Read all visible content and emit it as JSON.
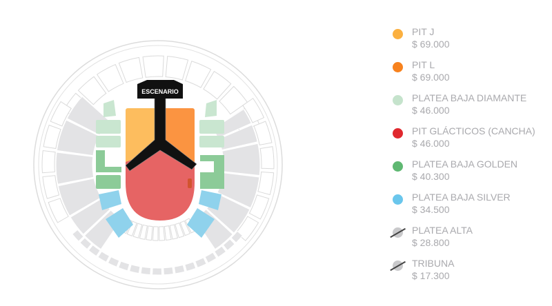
{
  "map": {
    "stage_label": "ESCENARIO"
  },
  "legend": [
    {
      "name": "PIT J",
      "price": "$ 69.000",
      "color": "#fbb040",
      "available": true
    },
    {
      "name": "PIT L",
      "price": "$ 69.000",
      "color": "#f7821e",
      "available": true
    },
    {
      "name": "PLATEA BAJA DIAMANTE",
      "price": "$ 46.000",
      "color": "#c5e3cc",
      "available": true
    },
    {
      "name": "PIT GLÁCTICOS (CANCHA)",
      "price": "$ 46.000",
      "color": "#e0282e",
      "available": true
    },
    {
      "name": "PLATEA BAJA GOLDEN",
      "price": "$ 40.300",
      "color": "#5fb872",
      "available": true
    },
    {
      "name": "PLATEA BAJA SILVER",
      "price": "$ 34.500",
      "color": "#6ac6ec",
      "available": true
    },
    {
      "name": "PLATEA ALTA",
      "price": "$ 28.800",
      "color": "#c9c9cb",
      "available": false
    },
    {
      "name": "TRIBUNA",
      "price": "$ 17.300",
      "color": "#c9c9cb",
      "available": false
    }
  ]
}
